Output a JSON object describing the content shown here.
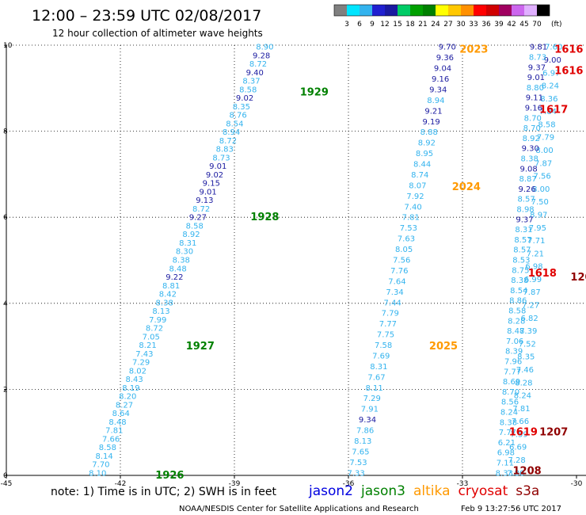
{
  "header": {
    "title": "12:00 – 23:59 UTC 02/08/2017",
    "subtitle": "12 hour collection of altimeter wave heights"
  },
  "colorbar": {
    "labels": [
      "3",
      "6",
      "9",
      "12",
      "15",
      "18",
      "21",
      "24",
      "27",
      "30",
      "33",
      "36",
      "39",
      "42",
      "45",
      "70"
    ],
    "unit": "(ft)",
    "colors": [
      "#808080",
      "#00e5ff",
      "#33b3ee",
      "#2020d0",
      "#1a1aa0",
      "#00cc66",
      "#00a000",
      "#008000",
      "#ffff00",
      "#ffc800",
      "#ff9000",
      "#ff0000",
      "#d00000",
      "#a00060",
      "#cc66ee",
      "#e0b0ff",
      "#000000"
    ]
  },
  "footer": {
    "note": "note: 1) Time is in UTC; 2) SWH is in feet",
    "legend": [
      {
        "name": "jason2",
        "color": "#0000e0"
      },
      {
        "name": "jason3",
        "color": "#008000"
      },
      {
        "name": "altika",
        "color": "#ff9900"
      },
      {
        "name": "cryosat",
        "color": "#e00000"
      },
      {
        "name": "s3a",
        "color": "#900000"
      }
    ],
    "credit": "NOAA/NESDIS Center for Satellite Applications and Research",
    "timestamp": "Feb  9 13:27:56 UTC 2017"
  },
  "chart_data": {
    "type": "scatter",
    "xlim": [
      -45,
      -30
    ],
    "ylim": [
      0,
      10
    ],
    "x_ticks": [
      "-45",
      "-42",
      "-39",
      "-36",
      "-33",
      "-30"
    ],
    "y_ticks": [
      "0",
      "2",
      "4",
      "6",
      "8",
      "10"
    ],
    "grid": true,
    "passes": [
      {
        "satellite": "jason3",
        "series": [
          {
            "x_start": -42.6,
            "y_start": 0.05,
            "x_end": -38.2,
            "y_end": 9.95,
            "values": [
              "8.10",
              "7.70",
              "8.14",
              "8.58",
              "7.66",
              "7.81",
              "8.48",
              "8.64",
              "8.27",
              "8.20",
              "8.19",
              "8.43",
              "8.02",
              "7.29",
              "7.43",
              "8.21",
              "7.05",
              "8.72",
              "7.99",
              "8.13",
              "8.38",
              "8.42",
              "8.81",
              "9.22",
              "8.48",
              "8.38",
              "8.30",
              "8.31",
              "8.92",
              "8.58",
              "9.27",
              "8.72",
              "9.13",
              "9.01",
              "9.15",
              "9.02",
              "9.01",
              "8.73",
              "8.83",
              "8.72",
              "8.94",
              "8.54",
              "8.76",
              "8.35",
              "9.02",
              "8.58",
              "8.37",
              "9.40",
              "8.72",
              "9.28",
              "8.90"
            ]
          }
        ],
        "labels": [
          {
            "text": "1926",
            "x": -40.7,
            "y": 0.0
          },
          {
            "text": "1927",
            "x": -39.9,
            "y": 3.0
          },
          {
            "text": "1928",
            "x": -38.2,
            "y": 6.0
          },
          {
            "text": "1929",
            "x": -36.9,
            "y": 8.9
          }
        ]
      },
      {
        "satellite": "altika",
        "series": [
          {
            "x_start": -35.8,
            "y_start": 0.05,
            "x_end": -33.4,
            "y_end": 9.95,
            "values": [
              "7.33",
              "7.53",
              "7.65",
              "8.13",
              "7.86",
              "9.34",
              "7.91",
              "7.29",
              "8.11",
              "7.67",
              "8.31",
              "7.69",
              "7.58",
              "7.75",
              "7.77",
              "7.79",
              "7.44",
              "7.34",
              "7.64",
              "7.76",
              "7.56",
              "8.05",
              "7.63",
              "7.53",
              "7.81",
              "7.40",
              "7.92",
              "8.07",
              "8.74",
              "8.44",
              "8.95",
              "8.92",
              "8.88",
              "9.19",
              "9.21",
              "8.94",
              "9.34",
              "9.16",
              "9.04",
              "9.36",
              "9.70"
            ]
          }
        ],
        "labels": [
          {
            "text": "2023",
            "x": -32.7,
            "y": 9.9
          },
          {
            "text": "2024",
            "x": -32.9,
            "y": 6.7
          },
          {
            "text": "2025",
            "x": -33.5,
            "y": 3.0
          }
        ]
      },
      {
        "satellite": "jason2",
        "series": [
          {
            "x_start": -31.6,
            "y_start": 0.05,
            "x_end": -30.6,
            "y_end": 9.95,
            "values": [
              "7.80",
              "7.28",
              "6.69",
              "7.59",
              "7.66",
              "7.81",
              "8.24",
              "8.28",
              "7.46",
              "8.35",
              "7.52",
              "7.39",
              "6.82",
              "7.27",
              "7.87",
              "6.99",
              "6.98",
              "7.21",
              "7.71",
              "7.95",
              "8.97",
              "7.50",
              "8.00",
              "7.56",
              "7.87",
              "8.00",
              "7.79",
              "8.58",
              "7.84",
              "8.36",
              "8.24",
              "6.97",
              "9.00",
              "7.60"
            ]
          },
          {
            "x_start": -31.9,
            "y_start": 0.05,
            "x_end": -31.0,
            "y_end": 9.95,
            "values": [
              "8.33",
              "7.11",
              "6.98",
              "6.21",
              "7.77",
              "8.38",
              "8.24",
              "8.56",
              "8.70",
              "8.69",
              "7.77",
              "7.96",
              "8.39",
              "7.06",
              "8.48",
              "8.28",
              "8.58",
              "8.86",
              "8.54",
              "8.38",
              "8.75",
              "8.53",
              "8.57",
              "8.57",
              "8.31",
              "9.37",
              "8.98",
              "8.57",
              "9.26",
              "8.87",
              "9.08",
              "8.38",
              "9.30",
              "8.92",
              "8.70",
              "8.70",
              "9.16",
              "9.11",
              "8.80",
              "9.01",
              "9.37",
              "8.73",
              "9.81"
            ]
          }
        ],
        "labels": []
      },
      {
        "satellite": "cryosat",
        "series": [],
        "labels": [
          {
            "text": "1616",
            "x": -30.2,
            "y": 9.9
          },
          {
            "text": "1616",
            "x": -30.2,
            "y": 9.4
          },
          {
            "text": "1617",
            "x": -30.6,
            "y": 8.5
          },
          {
            "text": "1618",
            "x": -30.9,
            "y": 4.7
          },
          {
            "text": "1619",
            "x": -31.4,
            "y": 1.0
          }
        ]
      },
      {
        "satellite": "s3a",
        "series": [],
        "labels": [
          {
            "text": "1207",
            "x": -30.6,
            "y": 1.0
          },
          {
            "text": "1208",
            "x": -31.3,
            "y": 0.1
          },
          {
            "text": "120",
            "x": -29.7,
            "y": 4.6
          }
        ]
      }
    ]
  }
}
